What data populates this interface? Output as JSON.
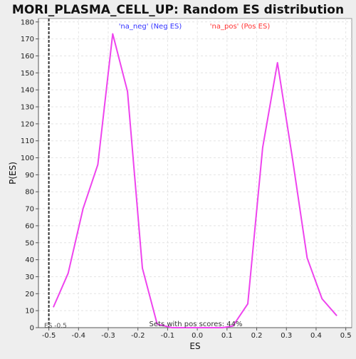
{
  "chart_data": {
    "type": "line",
    "title": "MORI_PLASMA_CELL_UP: Random ES distribution",
    "xlabel": "ES",
    "ylabel": "P(ES)",
    "xlim": [
      -0.535,
      0.52
    ],
    "ylim": [
      0,
      182
    ],
    "x_ticks": [
      -0.5,
      -0.4,
      -0.3,
      -0.2,
      -0.1,
      0.0,
      0.1,
      0.2,
      0.3,
      0.4,
      0.5
    ],
    "x_tick_labels": [
      "-0.5",
      "-0.4",
      "-0.3",
      "-0.2",
      "-0.1",
      "0.0",
      "0.1",
      "0.2",
      "0.3",
      "0.4",
      "0.5"
    ],
    "y_ticks": [
      0,
      10,
      20,
      30,
      40,
      50,
      60,
      70,
      80,
      90,
      100,
      110,
      120,
      130,
      140,
      150,
      160,
      170,
      180
    ],
    "y_tick_labels": [
      "0",
      "10",
      "20",
      "30",
      "40",
      "50",
      "60",
      "70",
      "80",
      "90",
      "100",
      "110",
      "120",
      "130",
      "140",
      "150",
      "160",
      "170",
      "180"
    ],
    "grid": true,
    "legend": [
      {
        "label": "'na_neg' (Neg ES)",
        "color": "#3333ff"
      },
      {
        "label": "'na_pos' (Pos ES)",
        "color": "#ff3333"
      }
    ],
    "series": [
      {
        "color": "#ee44ee",
        "x": [
          -0.485,
          -0.435,
          -0.385,
          -0.335,
          -0.285,
          -0.235,
          -0.185,
          -0.135,
          -0.085,
          0.085,
          0.12,
          0.17,
          0.22,
          0.27,
          0.32,
          0.37,
          0.42,
          0.47
        ],
        "y": [
          12,
          32,
          70,
          96,
          173,
          139,
          35,
          2,
          0,
          0,
          1,
          14,
          106,
          156,
          100,
          41,
          17,
          7
        ]
      }
    ],
    "reference_line": {
      "x": -0.5,
      "label": "ES -0.5",
      "style": "dashed",
      "color": "#333333"
    },
    "annotation": "Sets with pos scores: 44%"
  }
}
